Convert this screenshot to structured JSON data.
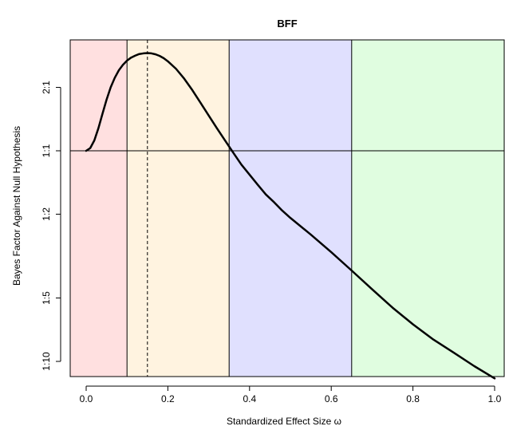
{
  "chart_data": {
    "type": "line",
    "title": "BFF",
    "xlabel": "Standardized Effect Size  ω",
    "ylabel": "Bayes Factor Against Null Hypothesis",
    "xlim": [
      0,
      1
    ],
    "y_scale": "log",
    "ylim": [
      0.088,
      3.2
    ],
    "x_ticks": [
      {
        "value": 0.0,
        "label": "0.0"
      },
      {
        "value": 0.2,
        "label": "0.2"
      },
      {
        "value": 0.4,
        "label": "0.4"
      },
      {
        "value": 0.6,
        "label": "0.6"
      },
      {
        "value": 0.8,
        "label": "0.8"
      },
      {
        "value": 1.0,
        "label": "1.0"
      }
    ],
    "y_ticks": [
      {
        "value": 2,
        "label": "2:1"
      },
      {
        "value": 1,
        "label": "1:1"
      },
      {
        "value": 0.5,
        "label": "1:2"
      },
      {
        "value": 0.2,
        "label": "1:5"
      },
      {
        "value": 0.1,
        "label": "1:10"
      }
    ],
    "regions": [
      {
        "from": -0.04,
        "to": 0.1,
        "color": "#ffe0e0"
      },
      {
        "from": 0.1,
        "to": 0.35,
        "color": "#fff3e0"
      },
      {
        "from": 0.35,
        "to": 0.65,
        "color": "#e0e0fe"
      },
      {
        "from": 0.65,
        "to": 1.04,
        "color": "#e0fde0"
      }
    ],
    "region_boundaries": [
      0.1,
      0.35,
      0.65
    ],
    "reference_line_y": 1,
    "max_line_x": 0.15,
    "series": [
      {
        "color": "#000000",
        "x": [
          0.0,
          0.01,
          0.02,
          0.03,
          0.04,
          0.05,
          0.06,
          0.07,
          0.08,
          0.09,
          0.1,
          0.11,
          0.12,
          0.13,
          0.14,
          0.15,
          0.16,
          0.17,
          0.18,
          0.19,
          0.2,
          0.22,
          0.24,
          0.26,
          0.28,
          0.3,
          0.32,
          0.34,
          0.36,
          0.38,
          0.4,
          0.42,
          0.44,
          0.46,
          0.48,
          0.5,
          0.55,
          0.6,
          0.65,
          0.7,
          0.75,
          0.8,
          0.85,
          0.9,
          0.95,
          1.0
        ],
        "y": [
          1.0,
          1.03,
          1.12,
          1.28,
          1.5,
          1.75,
          2.0,
          2.22,
          2.41,
          2.56,
          2.68,
          2.77,
          2.83,
          2.88,
          2.9,
          2.91,
          2.9,
          2.87,
          2.82,
          2.75,
          2.66,
          2.45,
          2.2,
          1.94,
          1.69,
          1.47,
          1.28,
          1.12,
          0.98,
          0.86,
          0.77,
          0.69,
          0.62,
          0.57,
          0.52,
          0.48,
          0.4,
          0.33,
          0.27,
          0.22,
          0.18,
          0.15,
          0.127,
          0.11,
          0.095,
          0.083
        ]
      }
    ]
  }
}
